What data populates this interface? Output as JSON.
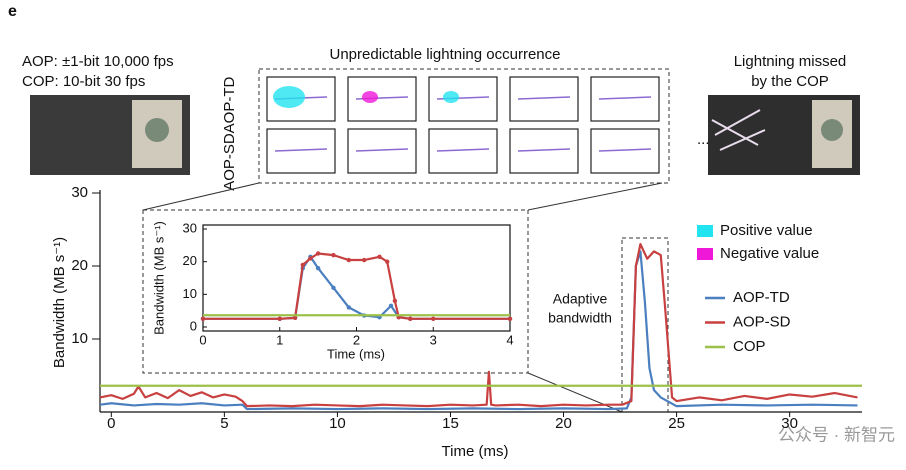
{
  "panel_label": "e",
  "aop_spec": "AOP: ±1-bit 10,000 fps",
  "cop_spec": "COP: 10-bit 30 fps",
  "montage_title": "Unpredictable lightning occurrence",
  "row_labels": [
    "AOP-TD",
    "AOP-SD"
  ],
  "ellipsis": "...",
  "missed_caption": [
    "Lightning missed",
    "by the COP"
  ],
  "swatch_legend": [
    {
      "label": "Positive value",
      "color": "#22e4f0"
    },
    {
      "label": "Negative value",
      "color": "#f018d8"
    }
  ],
  "watermark": "公众号 · 新智元",
  "chart_data": [
    {
      "type": "line",
      "xlabel": "Time (ms)",
      "ylabel": "Bandwidth (MB s⁻¹)",
      "xlim": [
        -0.5,
        33.2
      ],
      "ylim": [
        0,
        30
      ],
      "xticks": [
        0,
        5,
        10,
        15,
        20,
        25,
        30
      ],
      "yticks": [
        10,
        20,
        30
      ],
      "annotation": [
        "Adaptive",
        "bandwidth"
      ],
      "series": [
        {
          "name": "AOP-TD",
          "color": "#4a7fc0",
          "x": [
            -0.5,
            0,
            1,
            2,
            3,
            4,
            5,
            5.8,
            6,
            8,
            10,
            12,
            14,
            16,
            18,
            20,
            22,
            22.8,
            23,
            23.2,
            23.4,
            23.6,
            23.8,
            24,
            24.3,
            25,
            27,
            29,
            31,
            33
          ],
          "values": [
            1,
            1.2,
            0.9,
            1.1,
            1,
            1.2,
            0.9,
            1,
            0.4,
            0.5,
            0.4,
            0.5,
            0.4,
            0.5,
            0.4,
            0.5,
            0.4,
            0.5,
            2,
            20,
            22,
            15,
            6,
            3,
            2,
            0.8,
            1,
            0.9,
            1,
            0.9
          ]
        },
        {
          "name": "AOP-SD",
          "color": "#c84040",
          "x": [
            -0.5,
            0,
            0.5,
            1,
            1.2,
            1.5,
            2,
            2.5,
            3,
            3.5,
            4,
            4.5,
            5,
            5.5,
            5.8,
            6,
            7,
            8,
            9,
            10,
            11,
            12,
            13,
            14,
            15,
            16,
            16.6,
            16.7,
            16.8,
            17,
            18,
            19,
            20,
            21,
            22,
            22.6,
            23,
            23.2,
            23.4,
            23.7,
            24,
            24.3,
            24.5,
            24.8,
            25,
            26,
            27,
            28,
            29,
            30,
            31,
            32,
            33
          ],
          "values": [
            2,
            2.3,
            1.8,
            2.5,
            3.5,
            2,
            2.6,
            1.9,
            3,
            2.2,
            2.7,
            2,
            2.4,
            2.1,
            1.5,
            0.8,
            0.9,
            0.8,
            1,
            0.9,
            0.8,
            1,
            0.9,
            0.8,
            1,
            0.9,
            1,
            5.5,
            1,
            0.9,
            1,
            0.8,
            1,
            0.9,
            1,
            1,
            1.5,
            20,
            23,
            21,
            22,
            21.5,
            14,
            2,
            1.5,
            2,
            1.6,
            2.2,
            1.8,
            2.4,
            2.1,
            2.6,
            2
          ]
        },
        {
          "name": "COP",
          "color": "#9cc04a",
          "x": [
            -0.5,
            33.2
          ],
          "values": [
            3.6,
            3.6
          ]
        }
      ]
    },
    {
      "type": "line",
      "xlabel": "Time (ms)",
      "ylabel": "Bandwidth (MB s⁻¹)",
      "xlim": [
        0,
        4
      ],
      "ylim": [
        0,
        30
      ],
      "xticks": [
        0,
        1,
        2,
        3,
        4
      ],
      "yticks": [
        0,
        10,
        20,
        30
      ],
      "series": [
        {
          "color": "#4a7fc0",
          "x": [
            0,
            1,
            1.2,
            1.3,
            1.4,
            1.5,
            1.7,
            1.9,
            2.1,
            2.3,
            2.45,
            2.55,
            2.7,
            4
          ],
          "values": [
            2.5,
            2.5,
            2.8,
            18,
            21.5,
            18,
            12,
            6,
            3.5,
            3,
            6.5,
            3,
            2.5,
            2.5
          ]
        },
        {
          "color": "#c84040",
          "x": [
            0,
            1,
            1.2,
            1.3,
            1.4,
            1.5,
            1.7,
            1.9,
            2.1,
            2.3,
            2.4,
            2.5,
            2.55,
            2.7,
            3,
            4
          ],
          "values": [
            2.5,
            2.5,
            2.8,
            19,
            21,
            22.5,
            22,
            20.5,
            20.5,
            21.5,
            20,
            8,
            3,
            2.5,
            2.5,
            2.5
          ]
        },
        {
          "color": "#9cc04a",
          "x": [
            0,
            4
          ],
          "values": [
            3.6,
            3.6
          ]
        }
      ]
    }
  ]
}
